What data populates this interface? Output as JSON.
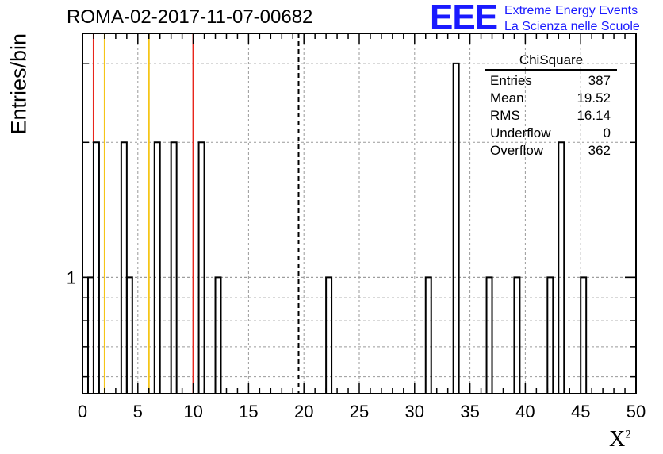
{
  "title": "ROMA-02-2017-11-07-00682",
  "logo": {
    "mark": "EEE",
    "line1": "Extreme Energy Events",
    "line2": "La Scienza nelle Scuole"
  },
  "stats": {
    "name": "ChiSquare",
    "rows": [
      {
        "label": "Entries",
        "value": "387"
      },
      {
        "label": "Mean",
        "value": "19.52"
      },
      {
        "label": "RMS",
        "value": "16.14"
      },
      {
        "label": "Underflow",
        "value": "0"
      },
      {
        "label": "Overflow",
        "value": "362"
      }
    ]
  },
  "chart_data": {
    "type": "histogram",
    "xlabel": "X",
    "xlabel_sup": "2",
    "ylabel": "Entries/bin",
    "xlim": [
      0,
      50
    ],
    "ylim": [
      0.55,
      3.5
    ],
    "yscale": "log",
    "bin_width": 0.5,
    "grid": true,
    "x_ticks": [
      0,
      5,
      10,
      15,
      20,
      25,
      30,
      35,
      40,
      45,
      50
    ],
    "y_tick_labels": [
      {
        "value": 1,
        "label": "1"
      }
    ],
    "bins": [
      {
        "x": 0.5,
        "y": 1
      },
      {
        "x": 1.0,
        "y": 2
      },
      {
        "x": 3.5,
        "y": 2
      },
      {
        "x": 4.0,
        "y": 1
      },
      {
        "x": 6.5,
        "y": 2
      },
      {
        "x": 8.0,
        "y": 2
      },
      {
        "x": 10.5,
        "y": 2
      },
      {
        "x": 12.0,
        "y": 1
      },
      {
        "x": 22.0,
        "y": 1
      },
      {
        "x": 31.0,
        "y": 1
      },
      {
        "x": 33.5,
        "y": 3
      },
      {
        "x": 36.5,
        "y": 1
      },
      {
        "x": 39.0,
        "y": 1
      },
      {
        "x": 42.0,
        "y": 1
      },
      {
        "x": 43.0,
        "y": 2
      },
      {
        "x": 45.0,
        "y": 1
      }
    ],
    "reference_lines": [
      {
        "x": 1.0,
        "color": "#e8261c",
        "style": "solid"
      },
      {
        "x": 2.0,
        "color": "#f5c518",
        "style": "solid"
      },
      {
        "x": 6.0,
        "color": "#f5c518",
        "style": "solid"
      },
      {
        "x": 10.0,
        "color": "#e8261c",
        "style": "solid"
      },
      {
        "x": 19.52,
        "color": "#000000",
        "style": "dashed"
      }
    ]
  }
}
